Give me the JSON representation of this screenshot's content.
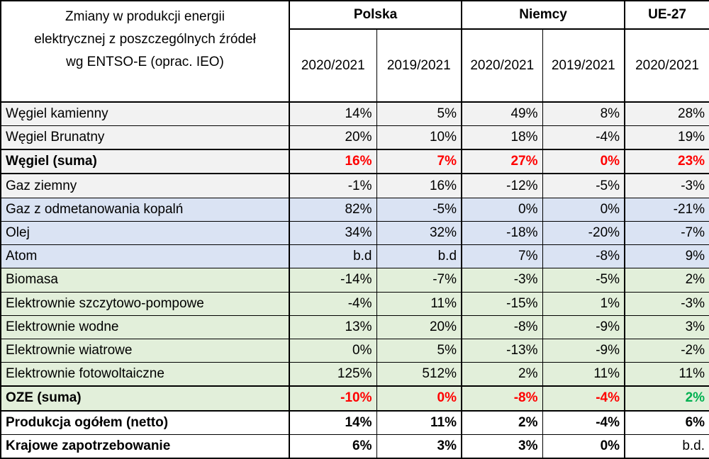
{
  "header": {
    "title_line1": "Zmiany w produkcji energii",
    "title_line2": "elektrycznej  z poszczególnych źródeł",
    "title_line3": "wg ENTSO-E (oprac. IEO)",
    "countries": [
      "Polska",
      "Niemcy",
      "UE-27"
    ],
    "years": [
      "2020/2021",
      "2019/2021",
      "2020/2021",
      "2019/2021",
      "2020/2021"
    ]
  },
  "rows": [
    {
      "label": "Węgiel kamienny",
      "values": [
        "14%",
        "5%",
        "49%",
        "8%",
        "28%"
      ],
      "bg": "gray"
    },
    {
      "label": "Węgiel Brunatny",
      "values": [
        "20%",
        "10%",
        "18%",
        "-4%",
        "19%"
      ],
      "bg": "gray"
    },
    {
      "label": "Węgiel (suma)",
      "values": [
        "16%",
        "7%",
        "27%",
        "0%",
        "23%"
      ],
      "bg": "gray",
      "bold": true
    },
    {
      "label": "Gaz ziemny",
      "values": [
        "-1%",
        "16%",
        "-12%",
        "-5%",
        "-3%"
      ],
      "bg": "gray"
    },
    {
      "label": "Gaz z odmetanowania kopalń",
      "values": [
        "82%",
        "-5%",
        "0%",
        "0%",
        "-21%"
      ],
      "bg": "blue"
    },
    {
      "label": "Olej",
      "values": [
        "34%",
        "32%",
        "-18%",
        "-20%",
        "-7%"
      ],
      "bg": "blue"
    },
    {
      "label": "Atom",
      "values": [
        "b.d",
        "b.d",
        "7%",
        "-8%",
        "9%"
      ],
      "bg": "blue"
    },
    {
      "label": "Biomasa",
      "values": [
        "-14%",
        "-7%",
        "-3%",
        "-5%",
        "2%"
      ],
      "bg": "green"
    },
    {
      "label": "Elektrownie szczytowo-pompowe",
      "values": [
        "-4%",
        "11%",
        "-15%",
        "1%",
        "-3%"
      ],
      "bg": "green"
    },
    {
      "label": "Elektrownie wodne",
      "values": [
        "13%",
        "20%",
        "-8%",
        "-9%",
        "3%"
      ],
      "bg": "green"
    },
    {
      "label": "Elektrownie wiatrowe",
      "values": [
        "0%",
        "5%",
        "-13%",
        "-9%",
        "-2%"
      ],
      "bg": "green"
    },
    {
      "label": "Elektrownie fotowoltaiczne",
      "values": [
        "125%",
        "512%",
        "2%",
        "11%",
        "11%"
      ],
      "bg": "green"
    },
    {
      "label": "OZE (suma)",
      "values": [
        "-10%",
        "0%",
        "-8%",
        "-4%",
        "2%"
      ],
      "bg": "green",
      "bold": true
    },
    {
      "label": "Produkcja ogółem (netto)",
      "values": [
        "14%",
        "11%",
        "2%",
        "-4%",
        "6%"
      ],
      "bg": "white",
      "bold": true
    },
    {
      "label": "Krajowe zapotrzebowanie",
      "values": [
        "6%",
        "3%",
        "3%",
        "0%",
        "b.d."
      ],
      "bg": "white",
      "bold": true
    }
  ],
  "colors": {
    "gray_fill": "#f2f2f2",
    "blue_fill": "#dae3f3",
    "green_fill": "#e2efda",
    "highlight_red": "#ff0000",
    "highlight_green": "#00b050"
  }
}
